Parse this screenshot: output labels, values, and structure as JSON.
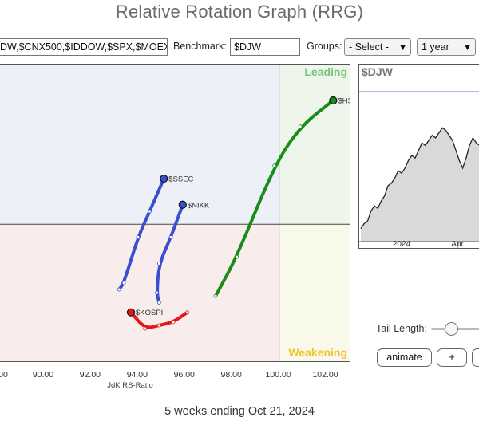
{
  "page": {
    "title": "Relative Rotation Graph (RRG)",
    "footer": "5 weeks ending Oct 21, 2024"
  },
  "toolbar": {
    "symbols_value": "DW,$CNX500,$IDDOW,$SPX,$MOEX",
    "benchmark_label": "Benchmark:",
    "benchmark_value": "$DJW",
    "groups_label": "Groups:",
    "groups_selected": "- Select -",
    "period_selected": "1 year"
  },
  "quadrants": {
    "leading": "Leading",
    "weakening": "Weakening",
    "colors": {
      "leading_bg": "#eef5ea",
      "weakening_bg": "#f9f9ea",
      "lagging_bg": "#f9ecec",
      "improving_bg": "#eef0f8",
      "leading_text": "#7cc47c",
      "weakening_text": "#f1c232"
    }
  },
  "x_axis": {
    "label": "JdK RS-Ratio",
    "ticks": [
      "00",
      "90.00",
      "92.00",
      "94.00",
      "96.00",
      "98.00",
      "100.00",
      "102.00"
    ]
  },
  "chart_data": {
    "type": "line",
    "xlabel": "JdK RS-Ratio",
    "xlim": [
      88.1,
      103.0
    ],
    "ylim": [
      95.8,
      104.9
    ],
    "y_ticks_visible": false,
    "center": [
      100,
      100
    ],
    "series": [
      {
        "name": "$HSI",
        "color": "#1a8c1a",
        "points": [
          [
            97.3,
            97.8
          ],
          [
            98.2,
            99.0
          ],
          [
            99.8,
            101.8
          ],
          [
            100.9,
            103.0
          ],
          [
            102.3,
            103.8
          ]
        ]
      },
      {
        "name": "$SSEC",
        "color": "#3a4fcf",
        "points": [
          [
            93.2,
            98.0
          ],
          [
            93.4,
            98.2
          ],
          [
            94.0,
            99.6
          ],
          [
            94.5,
            100.4
          ],
          [
            95.1,
            101.4
          ]
        ]
      },
      {
        "name": "$NIKK",
        "color": "#3a4fcf",
        "points": [
          [
            94.9,
            97.6
          ],
          [
            94.8,
            97.9
          ],
          [
            94.9,
            98.8
          ],
          [
            95.4,
            99.6
          ],
          [
            95.9,
            100.6
          ]
        ]
      },
      {
        "name": "$KOSPI",
        "color": "#e01a1a",
        "points": [
          [
            96.1,
            97.3
          ],
          [
            95.5,
            97.0
          ],
          [
            94.9,
            96.9
          ],
          [
            94.3,
            96.8
          ],
          [
            93.7,
            97.3
          ]
        ]
      }
    ]
  },
  "benchmark_chart": {
    "symbol": "$DJW",
    "x_ticks": [
      "2024",
      "Apr"
    ],
    "values": [
      0.04,
      0.08,
      0.1,
      0.18,
      0.22,
      0.2,
      0.26,
      0.3,
      0.38,
      0.4,
      0.44,
      0.5,
      0.48,
      0.52,
      0.58,
      0.62,
      0.6,
      0.66,
      0.72,
      0.7,
      0.74,
      0.78,
      0.76,
      0.8,
      0.84,
      0.82,
      0.78,
      0.74,
      0.66,
      0.58,
      0.52,
      0.6,
      0.7,
      0.76,
      0.72,
      0.7,
      0.78,
      0.82,
      0.86,
      0.88
    ],
    "reference_line": 1.0
  },
  "controls": {
    "tail_length_label": "Tail Length:",
    "tail_length_level": 0.35,
    "animate_label": "animate",
    "plus_label": "+"
  }
}
